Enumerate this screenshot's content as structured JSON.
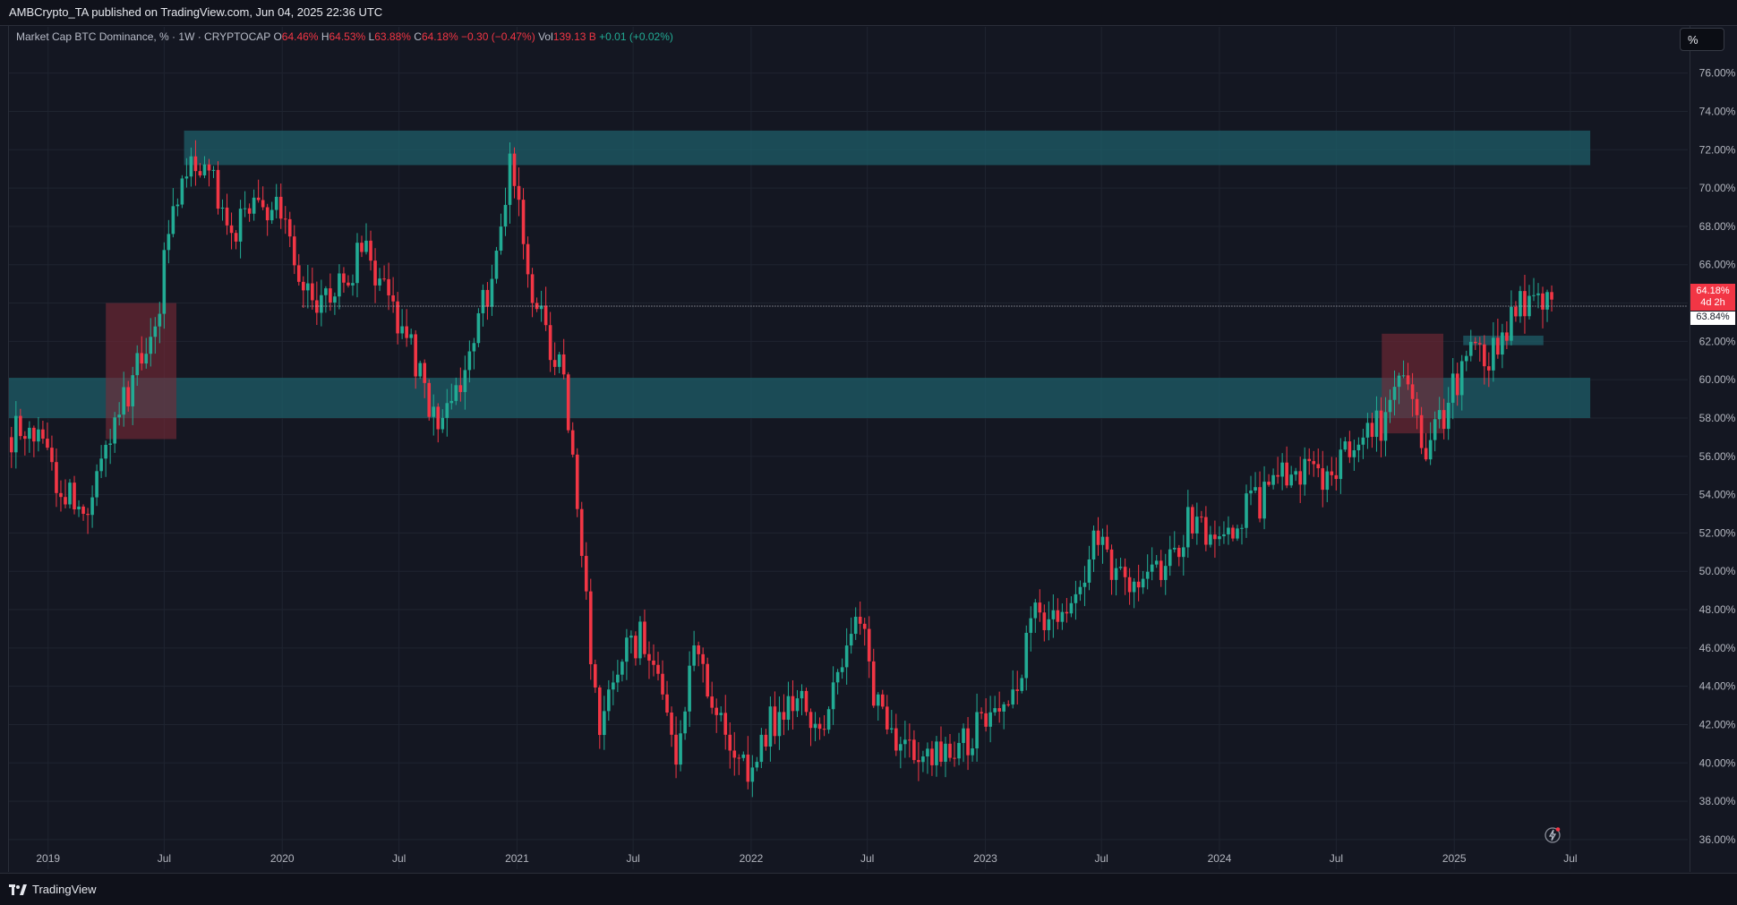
{
  "header": {
    "published": "AMBCrypto_TA published on TradingView.com, Jun 04, 2025 22:36 UTC"
  },
  "legend": {
    "symbol": "Market Cap BTC Dominance, % · 1W · CRYPTOCAP",
    "o_label": "O",
    "o_value": "64.46%",
    "h_label": "H",
    "h_value": "64.53%",
    "l_label": "L",
    "l_value": "63.88%",
    "c_label": "C",
    "c_value": "64.18%",
    "change": "−0.30 (−0.47%)",
    "vol_label": "Vol",
    "vol_value": "139.13 B",
    "vol_change": "+0.01 (+0.02%)"
  },
  "scale_button": "%",
  "price_tags": {
    "current": "64.18%",
    "countdown": "4d 2h",
    "prev_close": "63.84%"
  },
  "footer": {
    "brand": "TradingView"
  },
  "colors": {
    "up": "#22ab94",
    "down": "#f23645",
    "zone_teal": "#1e5d68",
    "zone_red": "#7a2a37",
    "background": "#141722",
    "grid": "#1f2430"
  },
  "chart_data": {
    "type": "candlestick",
    "timeframe": "1W",
    "x_ticks": [
      "2019",
      "Jul",
      "2020",
      "Jul",
      "2021",
      "Jul",
      "2022",
      "Jul",
      "2023",
      "Jul",
      "2024",
      "Jul",
      "2025",
      "Jul"
    ],
    "y_ticks": [
      "76.00%",
      "74.00%",
      "72.00%",
      "70.00%",
      "68.00%",
      "66.00%",
      "64.00%",
      "62.00%",
      "60.00%",
      "58.00%",
      "56.00%",
      "54.00%",
      "52.00%",
      "50.00%",
      "48.00%",
      "46.00%",
      "44.00%",
      "42.00%",
      "40.00%",
      "38.00%",
      "36.00%"
    ],
    "ylim": [
      35.2,
      77.2
    ],
    "xlim": [
      "2018-11-01",
      "2025-12-31"
    ],
    "price_path": [
      [
        "2018-11-01",
        57.0
      ],
      [
        "2018-12-20",
        57.8
      ],
      [
        "2019-01-20",
        54.5
      ],
      [
        "2019-03-01",
        53.0
      ],
      [
        "2019-04-15",
        57.5
      ],
      [
        "2019-05-20",
        60.5
      ],
      [
        "2019-06-20",
        63.0
      ],
      [
        "2019-07-10",
        67.0
      ],
      [
        "2019-08-01",
        70.5
      ],
      [
        "2019-09-01",
        71.5
      ],
      [
        "2019-10-15",
        67.8
      ],
      [
        "2019-11-20",
        68.5
      ],
      [
        "2020-01-01",
        69.0
      ],
      [
        "2020-02-20",
        63.8
      ],
      [
        "2020-04-01",
        65.0
      ],
      [
        "2020-05-10",
        66.8
      ],
      [
        "2020-06-15",
        64.5
      ],
      [
        "2020-07-20",
        62.0
      ],
      [
        "2020-08-30",
        58.0
      ],
      [
        "2020-10-01",
        59.5
      ],
      [
        "2020-11-20",
        64.5
      ],
      [
        "2020-12-25",
        71.0
      ],
      [
        "2021-01-20",
        66.0
      ],
      [
        "2021-02-20",
        62.0
      ],
      [
        "2021-03-15",
        60.5
      ],
      [
        "2021-04-10",
        53.0
      ],
      [
        "2021-05-01",
        45.0
      ],
      [
        "2021-05-15",
        42.0
      ],
      [
        "2021-06-15",
        46.0
      ],
      [
        "2021-07-15",
        46.5
      ],
      [
        "2021-08-15",
        44.0
      ],
      [
        "2021-09-10",
        40.5
      ],
      [
        "2021-10-10",
        46.0
      ],
      [
        "2021-11-15",
        42.5
      ],
      [
        "2021-12-15",
        40.0
      ],
      [
        "2022-01-01",
        40.0
      ],
      [
        "2022-02-01",
        42.0
      ],
      [
        "2022-03-10",
        43.5
      ],
      [
        "2022-04-20",
        41.5
      ],
      [
        "2022-05-25",
        44.5
      ],
      [
        "2022-06-20",
        47.5
      ],
      [
        "2022-07-20",
        43.0
      ],
      [
        "2022-09-01",
        40.5
      ],
      [
        "2022-10-20",
        40.5
      ],
      [
        "2022-12-01",
        41.0
      ],
      [
        "2023-01-10",
        42.5
      ],
      [
        "2023-02-20",
        43.5
      ],
      [
        "2023-03-20",
        47.5
      ],
      [
        "2023-05-10",
        48.0
      ],
      [
        "2023-06-25",
        51.5
      ],
      [
        "2023-08-20",
        49.2
      ],
      [
        "2023-10-15",
        50.5
      ],
      [
        "2023-11-25",
        53.0
      ],
      [
        "2024-01-05",
        51.5
      ],
      [
        "2024-02-10",
        53.0
      ],
      [
        "2024-03-20",
        54.0
      ],
      [
        "2024-05-01",
        55.5
      ],
      [
        "2024-06-20",
        55.0
      ],
      [
        "2024-08-10",
        57.0
      ],
      [
        "2024-09-20",
        58.0
      ],
      [
        "2024-10-20",
        60.0
      ],
      [
        "2024-11-20",
        55.5
      ],
      [
        "2024-12-20",
        58.5
      ],
      [
        "2025-01-20",
        61.0
      ],
      [
        "2025-02-20",
        61.0
      ],
      [
        "2025-04-01",
        63.0
      ],
      [
        "2025-04-28",
        64.5
      ],
      [
        "2025-05-20",
        63.5
      ],
      [
        "2025-06-04",
        64.18
      ]
    ],
    "last_close": 64.18,
    "zones": [
      {
        "type": "resistance",
        "from": "2019-08-01",
        "to": "2025-08-01",
        "low": 71.2,
        "high": 73.0
      },
      {
        "type": "support",
        "from": "2018-11-01",
        "to": "2025-08-01",
        "low": 58.0,
        "high": 60.1
      },
      {
        "type": "support",
        "from": "2025-01-15",
        "to": "2025-05-20",
        "low": 61.8,
        "high": 62.3
      },
      {
        "type": "highlight",
        "from": "2019-04-01",
        "to": "2019-07-20",
        "low": 56.9,
        "high": 64.0
      },
      {
        "type": "highlight",
        "from": "2024-09-10",
        "to": "2024-12-15",
        "low": 57.2,
        "high": 62.4
      }
    ],
    "reference_line": {
      "from": "2020-02-01",
      "value": 63.84
    }
  }
}
